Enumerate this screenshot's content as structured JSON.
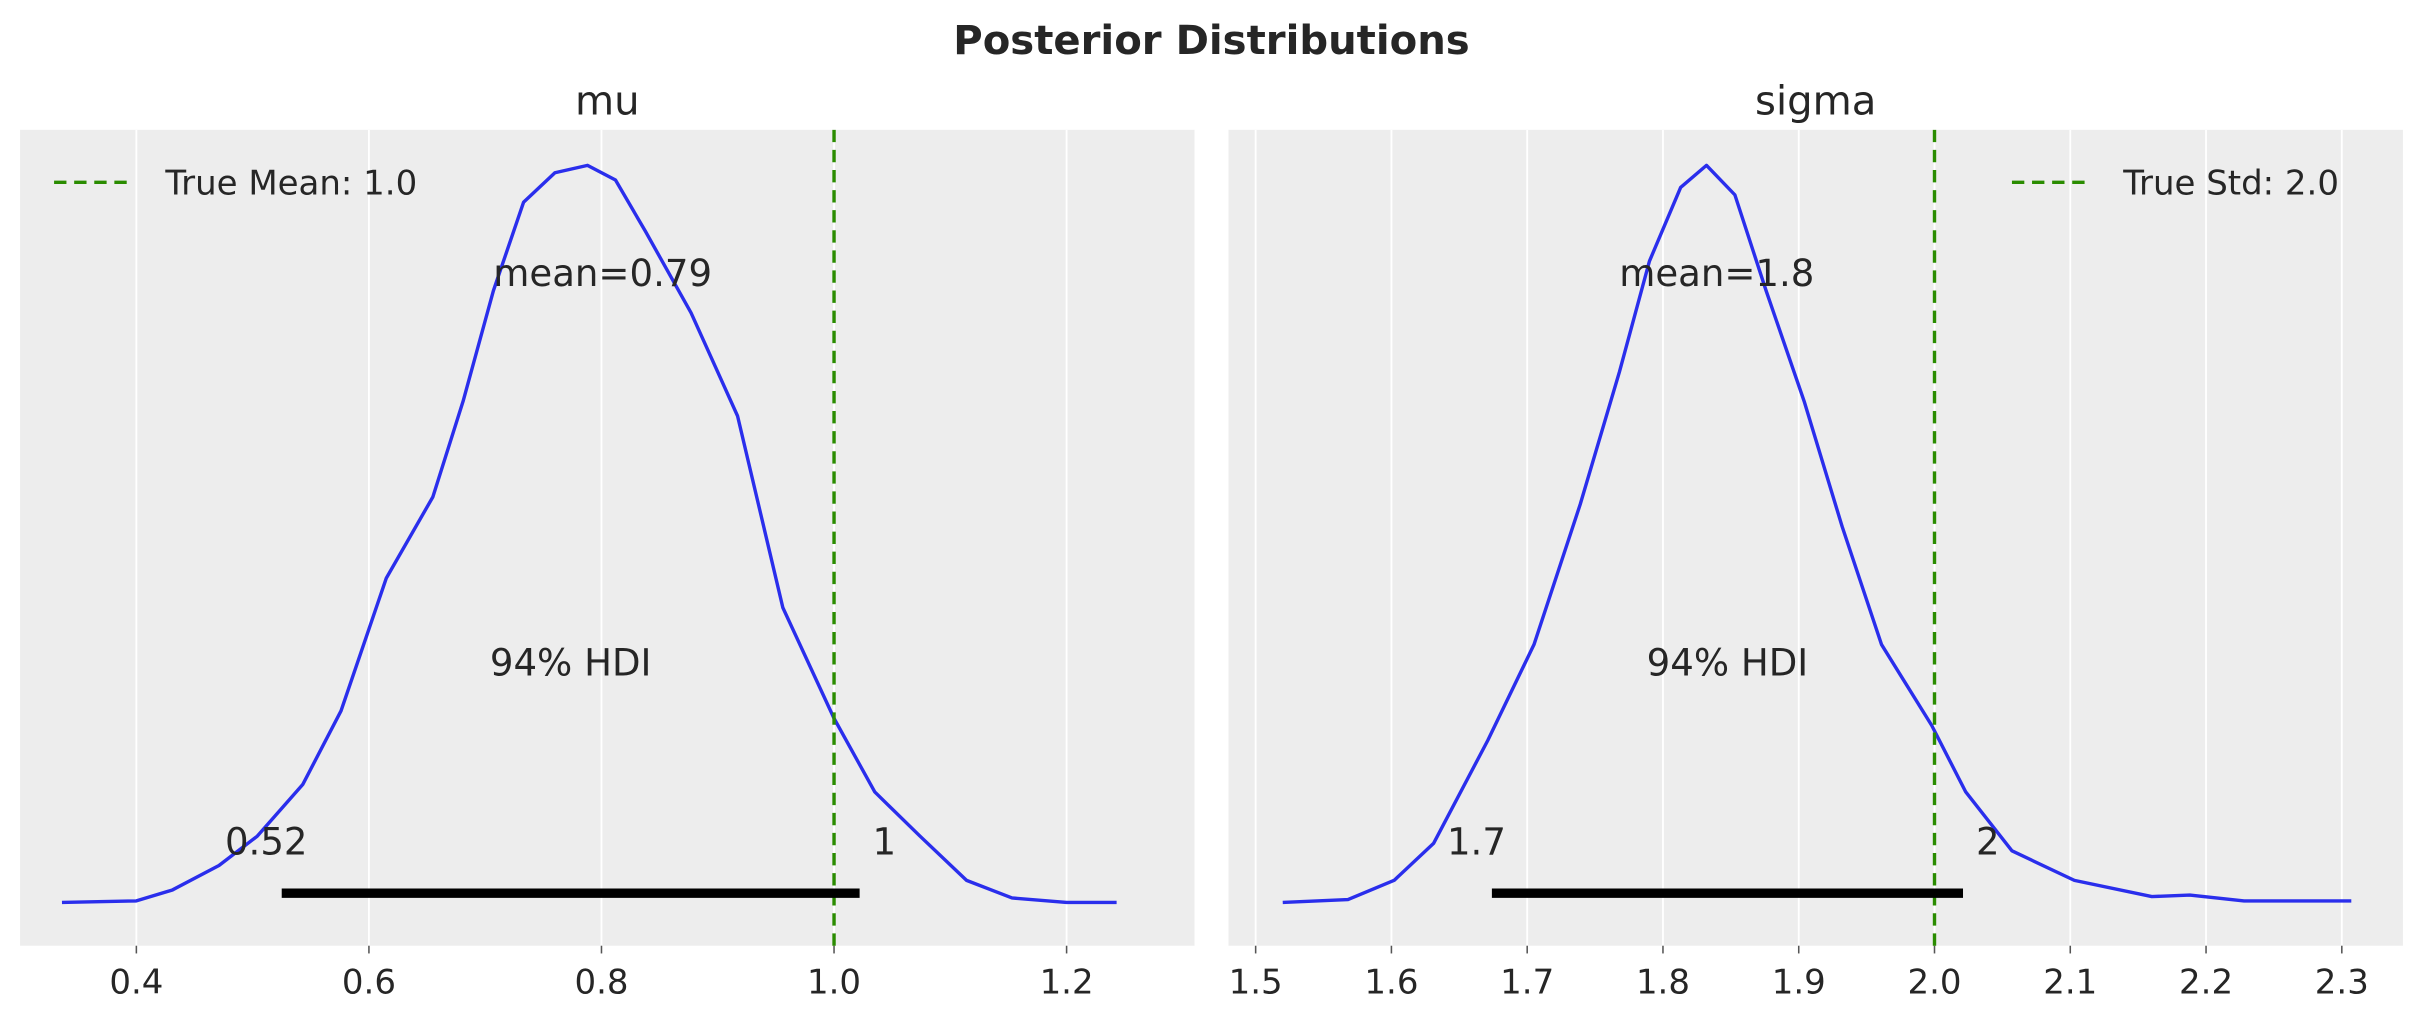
{
  "title": "Posterior Distributions",
  "chart_data": [
    {
      "type": "line",
      "subtitle": "mu",
      "xlim": [
        0.3,
        1.31
      ],
      "xticks": [
        0.4,
        0.6,
        0.8,
        1.0,
        1.2
      ],
      "xtick_labels": [
        "0.4",
        "0.6",
        "0.8",
        "1.0",
        "1.2"
      ],
      "grid": true,
      "y_axis_visible": false,
      "density": {
        "x": [
          0.336,
          0.4,
          0.431,
          0.471,
          0.504,
          0.543,
          0.576,
          0.615,
          0.655,
          0.681,
          0.707,
          0.733,
          0.76,
          0.788,
          0.812,
          0.838,
          0.877,
          0.917,
          0.956,
          1.0,
          1.035,
          1.074,
          1.114,
          1.153,
          1.2,
          1.243
        ],
        "y": [
          0,
          0.002,
          0.017,
          0.05,
          0.09,
          0.16,
          0.26,
          0.44,
          0.55,
          0.68,
          0.83,
          0.95,
          0.99,
          1.0,
          0.98,
          0.91,
          0.8,
          0.66,
          0.4,
          0.25,
          0.15,
          0.09,
          0.03,
          0.006,
          0,
          0
        ],
        "color": "#2a2eec"
      },
      "mean_label": "mean=0.79",
      "hdi": {
        "label": "94% HDI",
        "low": 0.525,
        "high": 1.022,
        "low_label": "0.52",
        "high_label": "1"
      },
      "reference_line": {
        "x": 1.0,
        "color": "#2a8c00",
        "legend": "True Mean: 1.0"
      },
      "legend_position": "upper-left"
    },
    {
      "type": "line",
      "subtitle": "sigma",
      "xlim": [
        1.48,
        2.345
      ],
      "xticks": [
        1.5,
        1.6,
        1.7,
        1.8,
        1.9,
        2.0,
        2.1,
        2.2,
        2.3
      ],
      "xtick_labels": [
        "1.5",
        "1.6",
        "1.7",
        "1.8",
        "1.9",
        "2.0",
        "2.1",
        "2.2",
        "2.3"
      ],
      "grid": true,
      "y_axis_visible": false,
      "density": {
        "x": [
          1.52,
          1.568,
          1.602,
          1.631,
          1.671,
          1.705,
          1.739,
          1.768,
          1.79,
          1.813,
          1.832,
          1.853,
          1.876,
          1.904,
          1.932,
          1.961,
          1.998,
          2.023,
          2.057,
          2.103,
          2.16,
          2.188,
          2.228,
          2.307
        ],
        "y": [
          0,
          0.004,
          0.03,
          0.08,
          0.22,
          0.35,
          0.54,
          0.72,
          0.87,
          0.97,
          1.0,
          0.96,
          0.83,
          0.68,
          0.51,
          0.35,
          0.24,
          0.15,
          0.07,
          0.03,
          0.008,
          0.01,
          0.002,
          0.002
        ],
        "color": "#2a2eec"
      },
      "mean_label": "mean=1.8",
      "hdi": {
        "label": "94% HDI",
        "low": 1.674,
        "high": 2.021,
        "low_label": "1.7",
        "high_label": "2"
      },
      "reference_line": {
        "x": 2.0,
        "color": "#2a8c00",
        "legend": "True Std: 2.0"
      },
      "legend_position": "upper-right"
    }
  ]
}
